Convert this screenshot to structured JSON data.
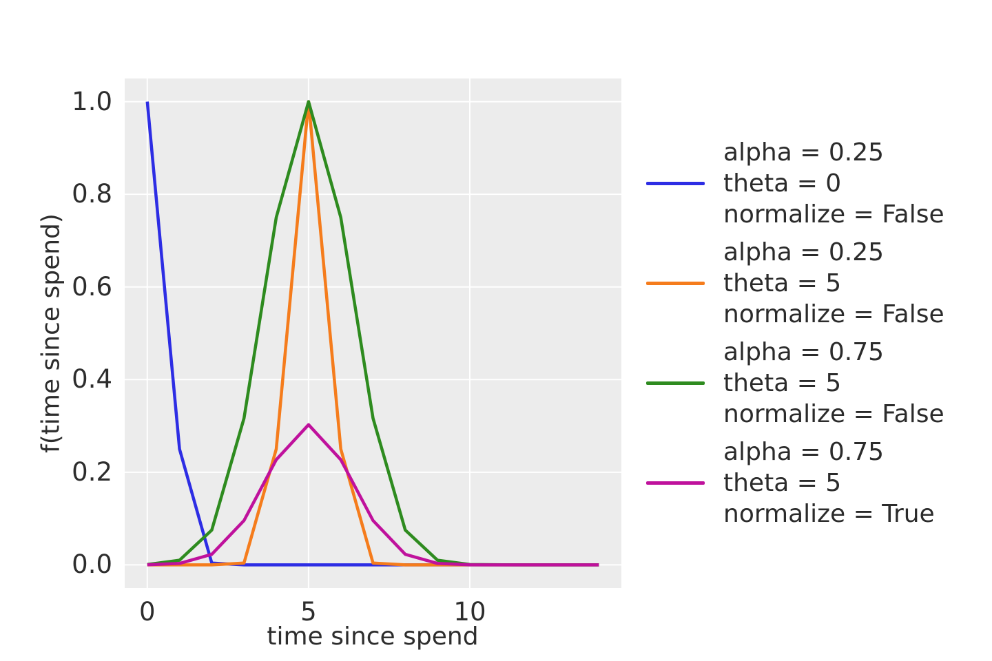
{
  "figure": {
    "background_color": "#ffffff",
    "plot_background_color": "#ececec",
    "grid_color": "#ffffff",
    "text_color": "#2d2d2d"
  },
  "axes": {
    "xlabel": "time since spend",
    "ylabel": "f(time since spend)",
    "x_ticks": [
      {
        "value": 0,
        "label": "0"
      },
      {
        "value": 5,
        "label": "5"
      },
      {
        "value": 10,
        "label": "10"
      }
    ],
    "y_ticks": [
      {
        "value": 0.0,
        "label": "0.0"
      },
      {
        "value": 0.2,
        "label": "0.2"
      },
      {
        "value": 0.4,
        "label": "0.4"
      },
      {
        "value": 0.6,
        "label": "0.6"
      },
      {
        "value": 0.8,
        "label": "0.8"
      },
      {
        "value": 1.0,
        "label": "1.0"
      }
    ]
  },
  "chart_data": {
    "type": "line",
    "title": "",
    "xlabel": "time since spend",
    "ylabel": "f(time since spend)",
    "xlim": [
      -0.7,
      14.7
    ],
    "ylim": [
      -0.05,
      1.05
    ],
    "grid": true,
    "legend_position": "center right, outside plot",
    "x": [
      0,
      1,
      2,
      3,
      4,
      5,
      6,
      7,
      8,
      9,
      10,
      11,
      12,
      13,
      14
    ],
    "series": [
      {
        "name": "alpha = 0.25, theta = 0, normalize = False",
        "color": "#2d2de4",
        "values": [
          1,
          0.25,
          0.003906,
          1e-06,
          0,
          0,
          0,
          0,
          0,
          0,
          0,
          0,
          0,
          0,
          0
        ]
      },
      {
        "name": "alpha = 0.25, theta = 5, normalize = False",
        "color": "#f57c1c",
        "values": [
          0,
          0,
          4e-06,
          0.003906,
          0.25,
          1,
          0.25,
          0.003906,
          4e-06,
          0,
          0,
          0,
          0,
          0,
          0
        ]
      },
      {
        "name": "alpha = 0.75, theta = 5, normalize = False",
        "color": "#2e8b1f",
        "values": [
          0.000753,
          0.010023,
          0.075085,
          0.316406,
          0.75,
          1,
          0.75,
          0.316406,
          0.075085,
          0.010023,
          0.000753,
          3.2e-05,
          1e-06,
          0,
          0
        ]
      },
      {
        "name": "alpha = 0.75, theta = 5, normalize = True",
        "color": "#bf119c",
        "values": [
          0.000228,
          0.003033,
          0.022721,
          0.095749,
          0.226943,
          0.302613,
          0.226943,
          0.095749,
          0.022721,
          0.003033,
          0.000228,
          1e-05,
          0,
          0,
          0
        ]
      }
    ]
  },
  "legend": {
    "entries": [
      {
        "color": "#2d2de4",
        "lines": [
          "alpha = 0.25",
          "theta = 0",
          "normalize = False"
        ]
      },
      {
        "color": "#f57c1c",
        "lines": [
          "alpha = 0.25",
          "theta = 5",
          "normalize = False"
        ]
      },
      {
        "color": "#2e8b1f",
        "lines": [
          "alpha = 0.75",
          "theta = 5",
          "normalize = False"
        ]
      },
      {
        "color": "#bf119c",
        "lines": [
          "alpha = 0.75",
          "theta = 5",
          "normalize = True"
        ]
      }
    ]
  }
}
